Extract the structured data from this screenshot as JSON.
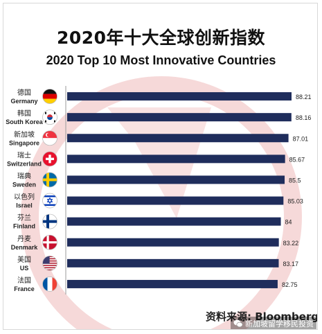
{
  "header": {
    "title_cn": "2020年十大全球创新指数",
    "title_en": "2020 Top 10 Most Innovative Countries"
  },
  "source_text": "资料来源: Bloomberg",
  "badge": {
    "text": "新加坡留学移民投资",
    "icon": "wechat-icon"
  },
  "colors": {
    "bar": "#1f2d5c",
    "watermark": "#f4cfcf"
  },
  "chart_data": {
    "type": "bar",
    "orientation": "horizontal",
    "title": "2020 Top 10 Most Innovative Countries",
    "categories": [
      {
        "cn": "德国",
        "en": "Germany",
        "flag": "germany-flag"
      },
      {
        "cn": "韩国",
        "en": "South Korea",
        "flag": "south-korea-flag"
      },
      {
        "cn": "新加坡",
        "en": "Singapore",
        "flag": "singapore-flag"
      },
      {
        "cn": "瑞士",
        "en": "Switzerland",
        "flag": "switzerland-flag"
      },
      {
        "cn": "瑞典",
        "en": "Sweden",
        "flag": "sweden-flag"
      },
      {
        "cn": "以色列",
        "en": "Israel",
        "flag": "israel-flag"
      },
      {
        "cn": "芬兰",
        "en": "Finland",
        "flag": "finland-flag"
      },
      {
        "cn": "丹麦",
        "en": "Denmark",
        "flag": "denmark-flag"
      },
      {
        "cn": "美国",
        "en": "US",
        "flag": "us-flag"
      },
      {
        "cn": "法国",
        "en": "France",
        "flag": "france-flag"
      }
    ],
    "values": [
      88.21,
      88.16,
      87.01,
      85.67,
      85.5,
      85.03,
      84,
      83.22,
      83.17,
      82.75
    ],
    "value_labels": [
      "88.21",
      "88.16",
      "87.01",
      "85.67",
      "85.5",
      "85.03",
      "84",
      "83.22",
      "83.17",
      "82.75"
    ],
    "xlim": [
      0,
      88.21
    ],
    "grid": false,
    "legend": "none"
  }
}
